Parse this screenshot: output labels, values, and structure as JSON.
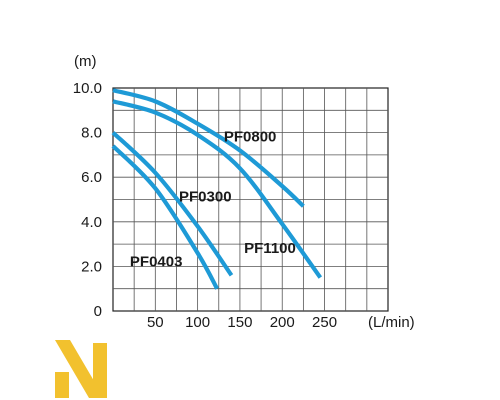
{
  "chart_data": {
    "type": "line",
    "title": "",
    "xlabel": "(L/min)",
    "ylabel": "(m)",
    "xlim": [
      0,
      325
    ],
    "ylim": [
      0,
      10
    ],
    "x_ticks": [
      "50",
      "100",
      "150",
      "200",
      "250"
    ],
    "x_tick_values": [
      50,
      100,
      150,
      200,
      250
    ],
    "y_ticks": [
      "0",
      "2.0",
      "4.0",
      "6.0",
      "8.0",
      "10.0"
    ],
    "y_tick_values": [
      0,
      2,
      4,
      6,
      8,
      10
    ],
    "grid": true,
    "series": [
      {
        "name": "PF0800",
        "color": "#1e9ad6",
        "label_at": [
          131,
          7.6
        ],
        "x": [
          0,
          50,
          100,
          150,
          200,
          225
        ],
        "y": [
          9.9,
          9.4,
          8.4,
          7.2,
          5.6,
          4.7
        ]
      },
      {
        "name": "PF1100",
        "color": "#1e9ad6",
        "label_at": [
          155,
          2.6
        ],
        "x": [
          0,
          50,
          100,
          150,
          200,
          245
        ],
        "y": [
          9.4,
          8.9,
          7.9,
          6.4,
          3.9,
          1.5
        ]
      },
      {
        "name": "PF0300",
        "color": "#1e9ad6",
        "label_at": [
          78,
          4.9
        ],
        "x": [
          0,
          50,
          100,
          140
        ],
        "y": [
          8.0,
          6.2,
          3.8,
          1.6
        ]
      },
      {
        "name": "PF0403",
        "color": "#1e9ad6",
        "label_at": [
          20,
          2.0
        ],
        "x": [
          0,
          50,
          100,
          123
        ],
        "y": [
          7.4,
          5.5,
          2.6,
          1.0
        ]
      }
    ]
  },
  "brand": {
    "logo_color": "#f2c12e"
  }
}
